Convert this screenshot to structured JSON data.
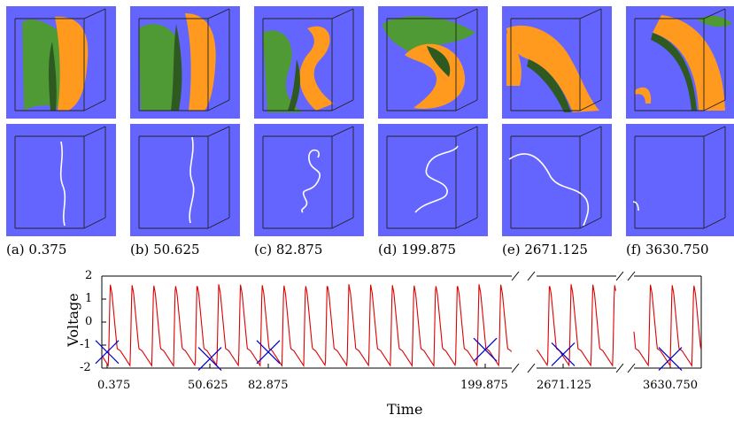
{
  "figure": {
    "panels": [
      {
        "id": "a",
        "caption": "(a) 0.375"
      },
      {
        "id": "b",
        "caption": "(b) 50.625"
      },
      {
        "id": "c",
        "caption": "(c) 82.875"
      },
      {
        "id": "d",
        "caption": "(d) 199.875"
      },
      {
        "id": "e",
        "caption": "(e) 2671.125"
      },
      {
        "id": "f",
        "caption": "(f) 3630.750"
      }
    ],
    "colors": {
      "panel_background": "#6464ff",
      "surface_orange": "#ff9a1f",
      "surface_green": "#4f9a35",
      "filament": "#ffffff",
      "trace": "#dd0000",
      "marker": "#0000cc"
    }
  },
  "chart_data": {
    "type": "line",
    "xlabel": "Time",
    "ylabel": "Voltage",
    "ylim": [
      -2,
      2
    ],
    "yticks": [
      "2",
      "1",
      "0",
      "-1",
      "-2"
    ],
    "xticks": [
      "0.375",
      "50.625",
      "82.875",
      "199.875",
      "2671.125",
      "3630.750"
    ],
    "axis_breaks": 2,
    "series": [
      {
        "values_note_free": true
      }
    ],
    "markers": [
      {
        "time": "0.375",
        "voltage": -1.3
      },
      {
        "time": "50.625",
        "voltage": -1.6
      },
      {
        "time": "82.875",
        "voltage": -1.3
      },
      {
        "time": "199.875",
        "voltage": -1.2
      },
      {
        "time": "2671.125",
        "voltage": -1.4
      },
      {
        "time": "3630.750",
        "voltage": -1.6
      }
    ]
  }
}
